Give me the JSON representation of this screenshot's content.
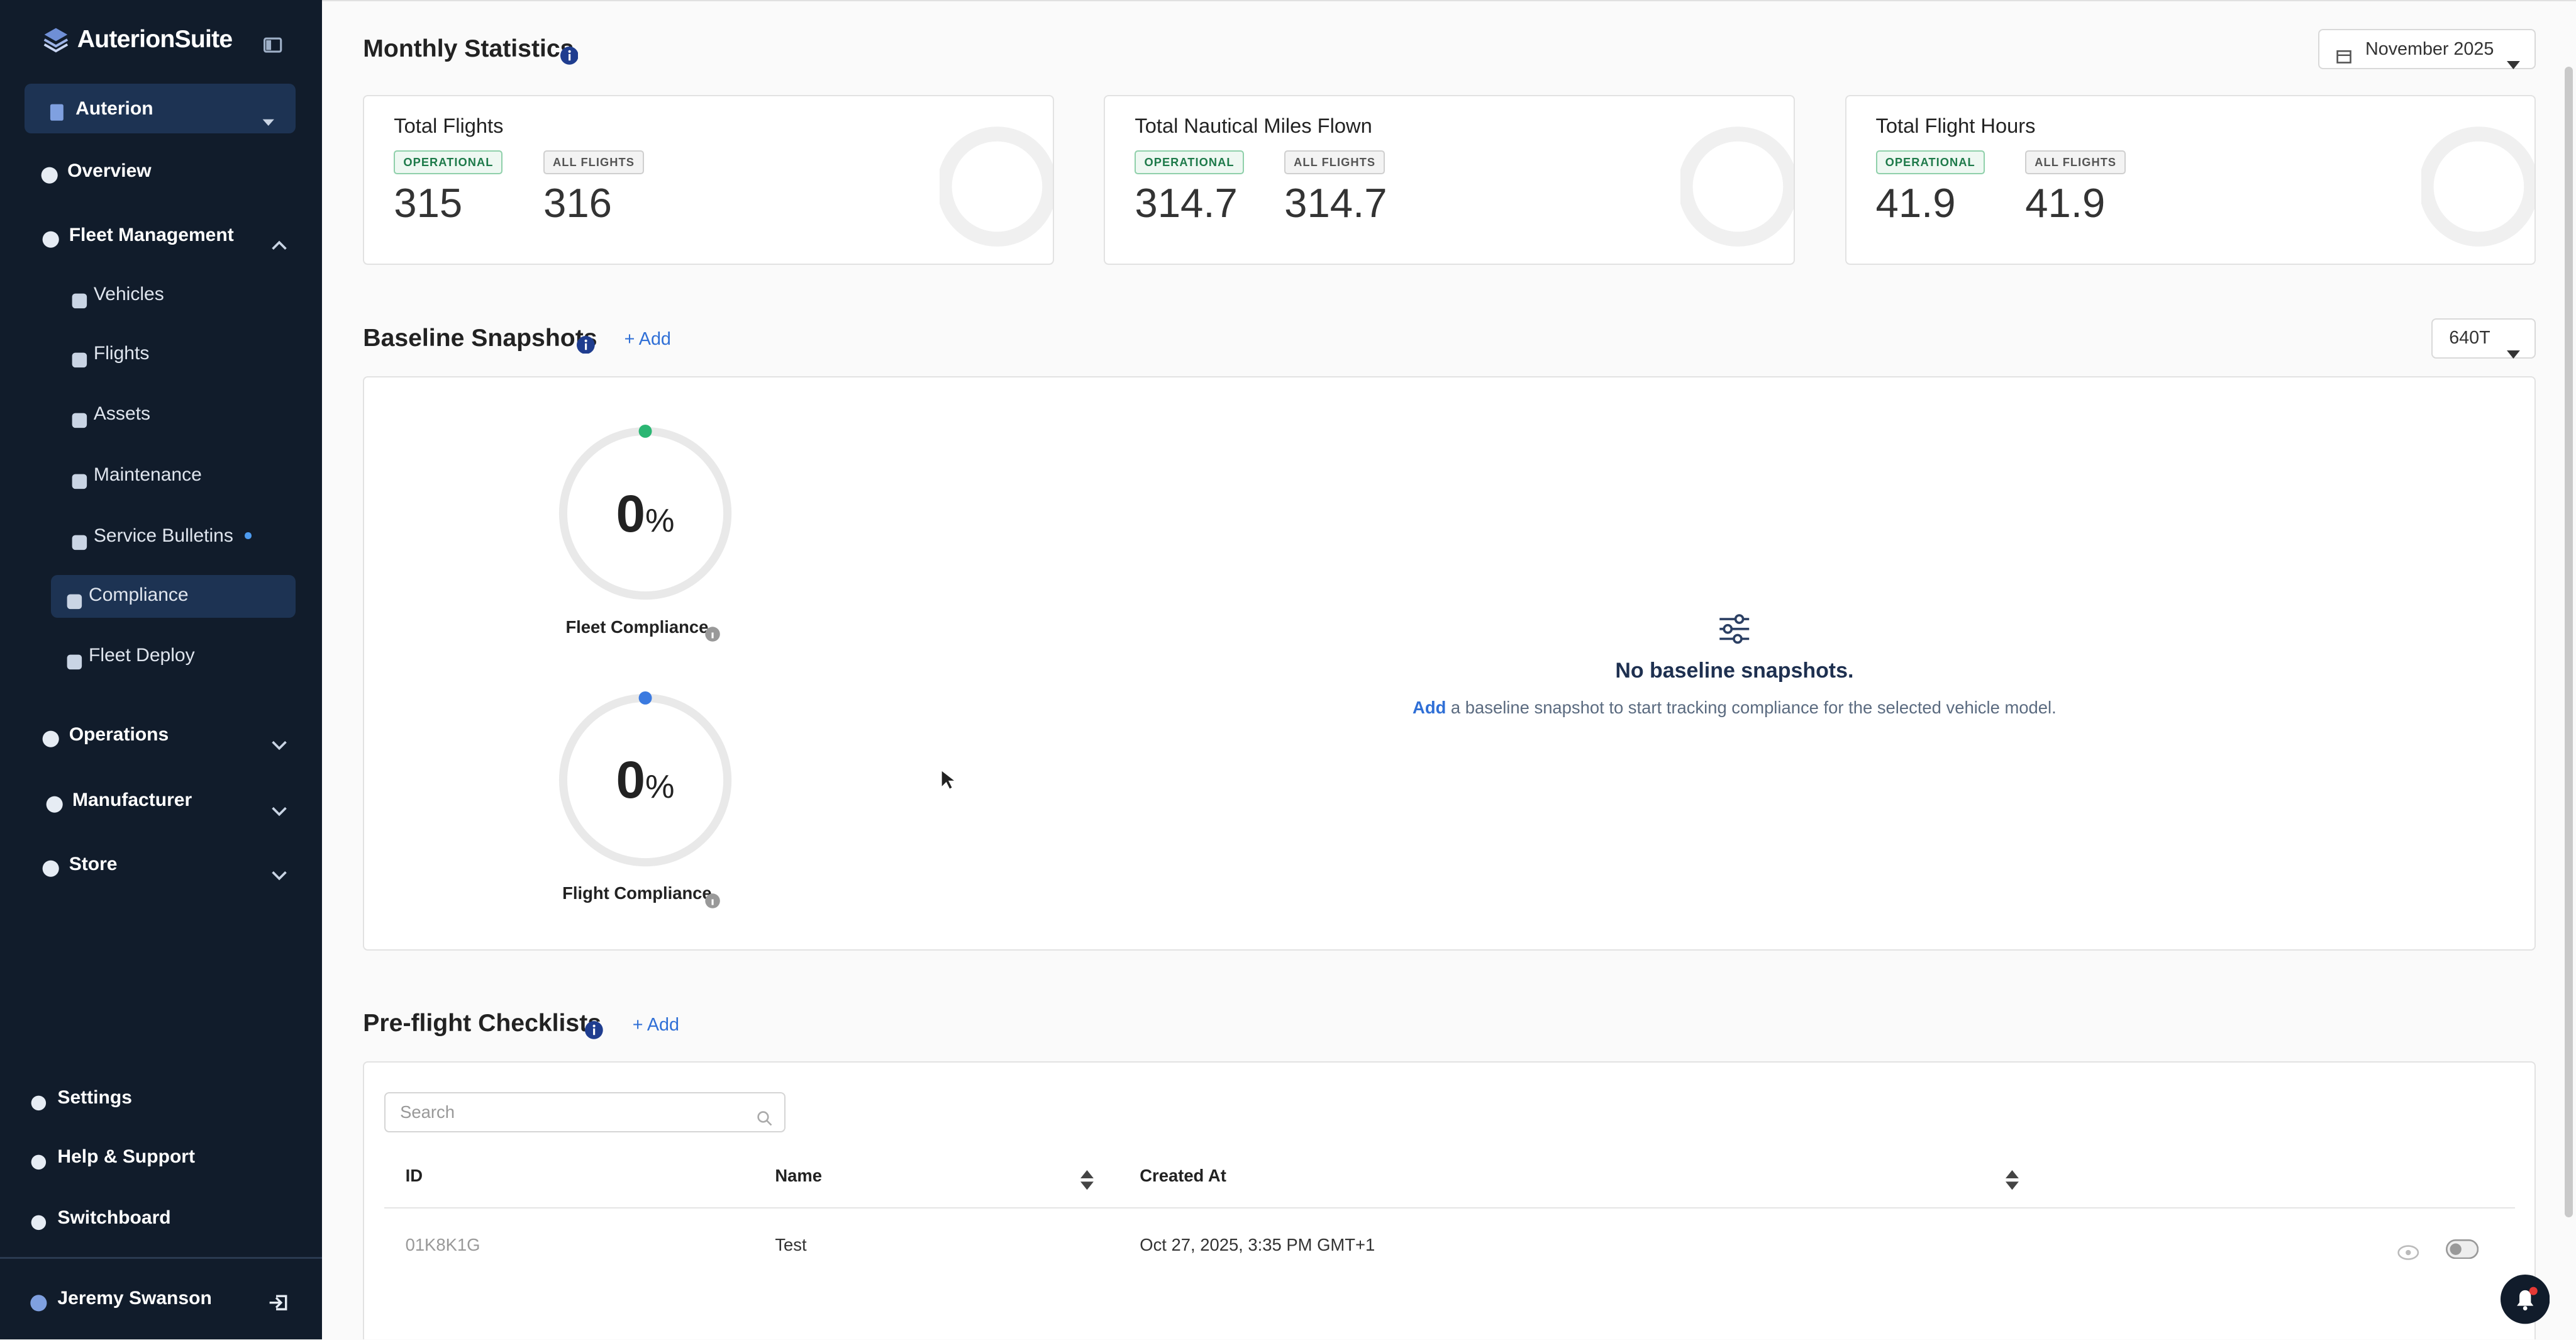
{
  "sidebar": {
    "brand": "AuterionSuite",
    "organization": "Auterion",
    "nav": [
      {
        "label": "Overview"
      },
      {
        "label": "Fleet Management",
        "children": [
          "Vehicles",
          "Flights",
          "Assets",
          "Maintenance",
          "Service Bulletins",
          "Compliance",
          "Fleet Deploy"
        ]
      },
      {
        "label": "Operations"
      },
      {
        "label": "Manufacturer"
      },
      {
        "label": "Store"
      }
    ],
    "footer_nav": [
      "Settings",
      "Help & Support",
      "Switchboard"
    ],
    "user": "Jeremy Swanson"
  },
  "monthly_statistics": {
    "title": "Monthly Statistics",
    "month": "November 2025",
    "cards": [
      {
        "title": "Total Flights",
        "operational_label": "OPERATIONAL",
        "operational": 315,
        "all_label": "ALL FLIGHTS",
        "all": 316
      },
      {
        "title": "Total Nautical Miles Flown",
        "operational_label": "OPERATIONAL",
        "operational": 314.7,
        "all_label": "ALL FLIGHTS",
        "all": 314.7
      },
      {
        "title": "Total Flight Hours",
        "operational_label": "OPERATIONAL",
        "operational": 41.9,
        "all_label": "ALL FLIGHTS",
        "all": 41.9
      }
    ]
  },
  "baseline_snapshots": {
    "title": "Baseline Snapshots",
    "add": "Add",
    "model": "640T",
    "gauges": [
      {
        "value": 0,
        "unit": "%",
        "label": "Fleet Compliance"
      },
      {
        "value": 0,
        "unit": "%",
        "label": "Flight Compliance"
      }
    ],
    "empty_state": {
      "title": "No baseline snapshots.",
      "link": "Add",
      "text": "a baseline snapshot to start tracking compliance for the selected vehicle model."
    }
  },
  "preflight_checklists": {
    "title": "Pre-flight Checklists",
    "add": "Add",
    "search_placeholder": "Search",
    "columns": [
      "ID",
      "Name",
      "Created At"
    ],
    "rows": [
      [
        "01K8K1G",
        "Test",
        "Oct 27, 2025, 3:35 PM GMT+1"
      ]
    ]
  }
}
